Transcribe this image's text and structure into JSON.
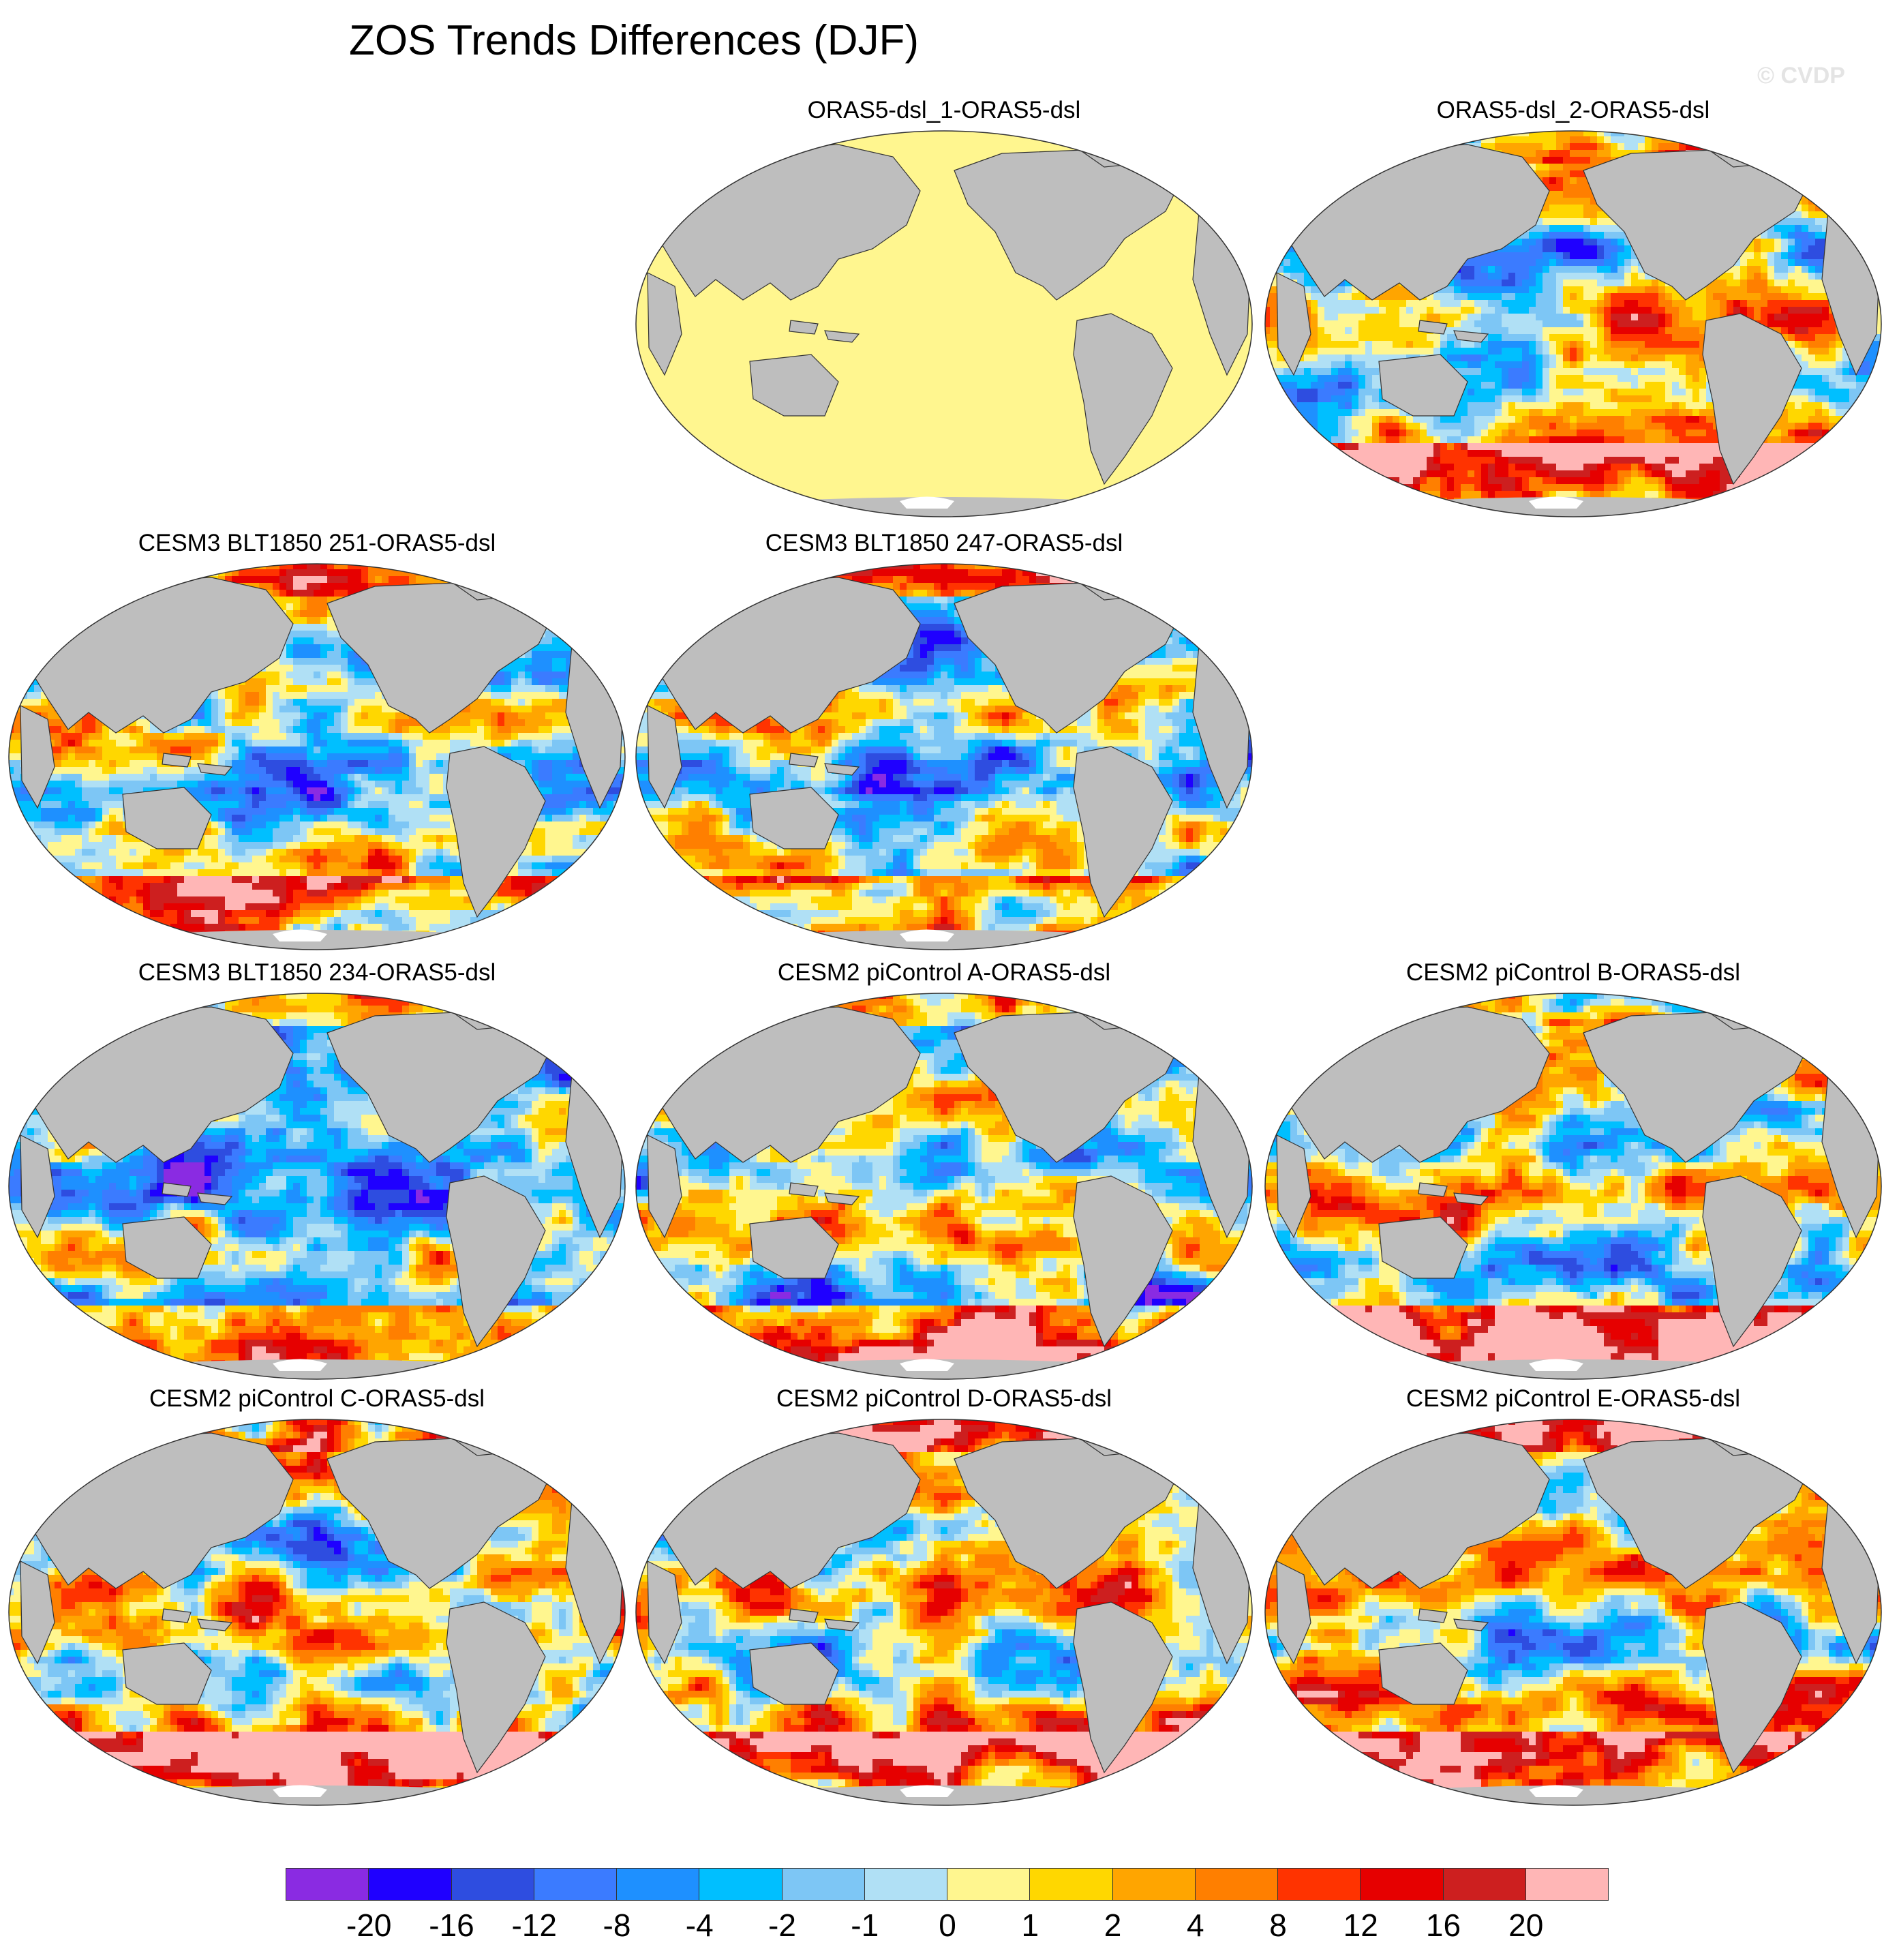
{
  "title": "ZOS Trends Differences (DJF)",
  "watermark": "© CVDP",
  "colors": {
    "land": "#bebebe",
    "antarctica": "#ffffff",
    "outline": "#333333"
  },
  "panels": [
    {
      "label": "ORAS5-dsl_1-ORAS5-dsl",
      "style": "uniform",
      "seed": 1
    },
    {
      "label": "ORAS5-dsl_2-ORAS5-dsl",
      "style": "mixed",
      "seed": 2
    },
    {
      "label": "CESM3 BLT1850 251-ORAS5-dsl",
      "style": "negative",
      "seed": 3
    },
    {
      "label": "CESM3 BLT1850 247-ORAS5-dsl",
      "style": "negative",
      "seed": 4
    },
    {
      "label": "CESM3 BLT1850 234-ORAS5-dsl",
      "style": "strong-negative",
      "seed": 5
    },
    {
      "label": "CESM2 piControl A-ORAS5-dsl",
      "style": "mixed",
      "seed": 6
    },
    {
      "label": "CESM2 piControl B-ORAS5-dsl",
      "style": "mixed",
      "seed": 7
    },
    {
      "label": "CESM2 piControl C-ORAS5-dsl",
      "style": "positive",
      "seed": 8
    },
    {
      "label": "CESM2 piControl D-ORAS5-dsl",
      "style": "positive",
      "seed": 9
    },
    {
      "label": "CESM2 piControl E-ORAS5-dsl",
      "style": "positive",
      "seed": 10
    }
  ],
  "colorbar": {
    "colors": [
      "#8a2be2",
      "#1f00ff",
      "#2e4de0",
      "#3b7bff",
      "#1e90ff",
      "#00bfff",
      "#7dc6f5",
      "#b0e0f5",
      "#fff68f",
      "#ffd700",
      "#ffa500",
      "#ff7f00",
      "#ff3300",
      "#e60000",
      "#cd1f1f",
      "#ffb6b6"
    ],
    "labels": [
      "-20",
      "-16",
      "-12",
      "-8",
      "-4",
      "-2",
      "-1",
      "0",
      "1",
      "2",
      "4",
      "8",
      "12",
      "16",
      "20"
    ]
  }
}
